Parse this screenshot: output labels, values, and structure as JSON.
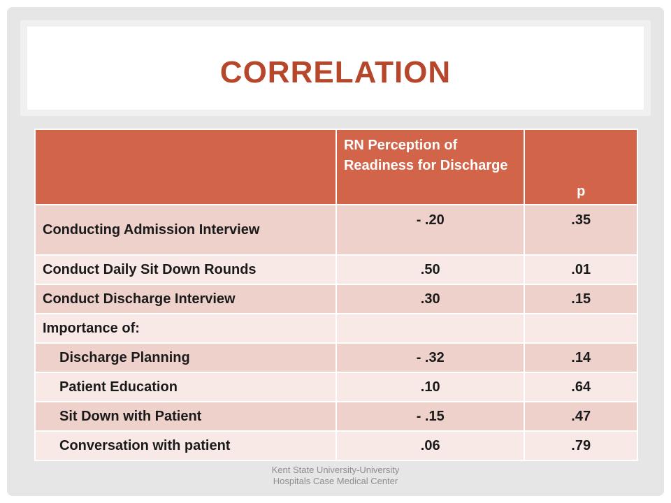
{
  "slide": {
    "title": "CORRELATION",
    "footer_line1": "Kent State University-University",
    "footer_line2": "Hospitals Case Medical Center"
  },
  "table": {
    "header": {
      "col1": "",
      "col2": "RN Perception of Readiness for Discharge",
      "col3": "p"
    },
    "rows": [
      {
        "label": "Conducting Admission Interview",
        "r": "- .20",
        "p": ".35"
      },
      {
        "label": "Conduct Daily Sit Down Rounds",
        "r": ".50",
        "p": ".01"
      },
      {
        "label": "Conduct Discharge Interview",
        "r": ".30",
        "p": ".15"
      },
      {
        "label": "Importance of:",
        "r": "",
        "p": ""
      },
      {
        "label": "Discharge Planning",
        "r": "- .32",
        "p": ".14"
      },
      {
        "label": "Patient Education",
        "r": ".10",
        "p": ".64"
      },
      {
        "label": "Sit Down with Patient",
        "r": "- .15",
        "p": ".47"
      },
      {
        "label": "Conversation with patient",
        "r": ".06",
        "p": ".79"
      }
    ]
  },
  "colors": {
    "title": "#b7472a",
    "header_fill": "#d2644a",
    "row_dark": "#eed1cb",
    "row_light": "#f8e9e6"
  }
}
